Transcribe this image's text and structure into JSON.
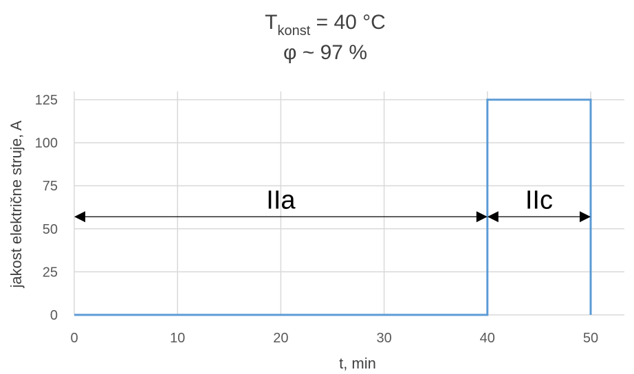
{
  "chart_data": {
    "type": "line",
    "title": {
      "line1_main": "T",
      "line1_sub": "konst",
      "line1_rest": " = 40 °C",
      "line2": "φ ~ 97 %"
    },
    "xlabel": "t, min",
    "ylabel": "jakost električne struje, A",
    "xlim": [
      0,
      50
    ],
    "ylim": [
      0,
      125
    ],
    "xticks": [
      0,
      10,
      20,
      30,
      40,
      50
    ],
    "yticks": [
      0,
      25,
      50,
      75,
      100,
      125
    ],
    "grid": true,
    "series": [
      {
        "color": "#5b9bd5",
        "x": [
          0,
          40,
          40,
          50,
          50
        ],
        "y": [
          0,
          0,
          125,
          125,
          0
        ]
      }
    ],
    "annotations": [
      {
        "label": "IIa",
        "x_from": 0,
        "x_to": 40,
        "y": 57
      },
      {
        "label": "IIc",
        "x_from": 40,
        "x_to": 50,
        "y": 57
      }
    ]
  }
}
